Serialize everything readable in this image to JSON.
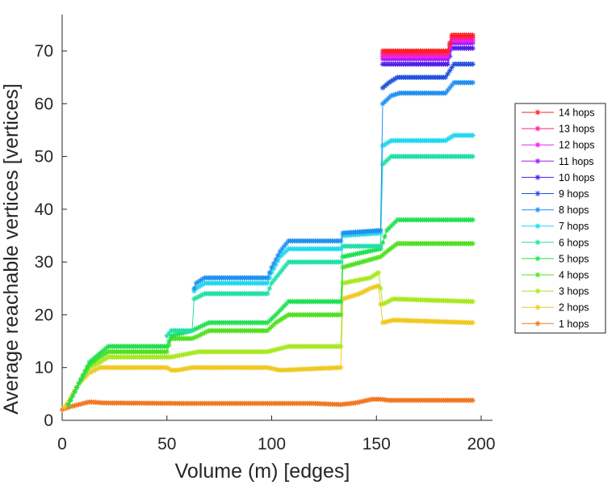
{
  "chart_data": {
    "type": "line",
    "xlabel": "Volume (m) [edges]",
    "ylabel": "Average reachable vertices [vertices]",
    "xlim": [
      0,
      200
    ],
    "ylim": [
      0,
      77
    ],
    "xticks": [
      "0",
      "50",
      "100",
      "150",
      "200"
    ],
    "yticks": [
      "0",
      "10",
      "20",
      "30",
      "40",
      "50",
      "60",
      "70"
    ],
    "grid": false,
    "legend_position": "right",
    "marker": "asterisk",
    "series": [
      {
        "name": "14 hops",
        "color": "#ff2020",
        "points": [
          [
            153,
            70
          ],
          [
            184,
            70
          ],
          [
            186,
            73
          ],
          [
            196,
            73
          ]
        ]
      },
      {
        "name": "13 hops",
        "color": "#ff1f88",
        "points": [
          [
            153,
            69.5
          ],
          [
            184,
            69.5
          ],
          [
            186,
            72.5
          ],
          [
            196,
            72.5
          ]
        ]
      },
      {
        "name": "12 hops",
        "color": "#ef1ff2",
        "points": [
          [
            153,
            69
          ],
          [
            184,
            69
          ],
          [
            186,
            72
          ],
          [
            196,
            72
          ]
        ]
      },
      {
        "name": "11 hops",
        "color": "#9f1ff2",
        "points": [
          [
            153,
            68.5
          ],
          [
            184,
            68.5
          ],
          [
            186,
            71.5
          ],
          [
            196,
            71.5
          ]
        ]
      },
      {
        "name": "10 hops",
        "color": "#4f1fe8",
        "points": [
          [
            153,
            67.5
          ],
          [
            184,
            67.5
          ],
          [
            186,
            70.5
          ],
          [
            196,
            70.5
          ]
        ]
      },
      {
        "name": "9 hops",
        "color": "#2050e0",
        "points": [
          [
            153,
            63
          ],
          [
            156,
            64
          ],
          [
            160,
            65
          ],
          [
            183,
            65
          ],
          [
            187,
            67.5
          ],
          [
            196,
            67.5
          ]
        ]
      },
      {
        "name": "8 hops",
        "color": "#2090f0",
        "points": [
          [
            63,
            25
          ],
          [
            64,
            26
          ],
          [
            68,
            27
          ],
          [
            98,
            27
          ],
          [
            100,
            29
          ],
          [
            104,
            32
          ],
          [
            108,
            34
          ],
          [
            133,
            34
          ],
          [
            134,
            35.5
          ],
          [
            152,
            36
          ],
          [
            153,
            60
          ],
          [
            157,
            61.5
          ],
          [
            161,
            62
          ],
          [
            183,
            62
          ],
          [
            187,
            64
          ],
          [
            196,
            64
          ]
        ]
      },
      {
        "name": "7 hops",
        "color": "#20d8f0",
        "points": [
          [
            63,
            24.5
          ],
          [
            64,
            25
          ],
          [
            68,
            26
          ],
          [
            98,
            26
          ],
          [
            100,
            28
          ],
          [
            104,
            31
          ],
          [
            108,
            32.5
          ],
          [
            133,
            32.5
          ],
          [
            134,
            35
          ],
          [
            152,
            35.5
          ],
          [
            153,
            52
          ],
          [
            157,
            53
          ],
          [
            161,
            53
          ],
          [
            183,
            53
          ],
          [
            187,
            54
          ],
          [
            196,
            54
          ]
        ]
      },
      {
        "name": "6 hops",
        "color": "#20e0a8",
        "points": [
          [
            50,
            16
          ],
          [
            52,
            17
          ],
          [
            62,
            17
          ],
          [
            63,
            23
          ],
          [
            68,
            24
          ],
          [
            98,
            24
          ],
          [
            100,
            26
          ],
          [
            104,
            28
          ],
          [
            108,
            30
          ],
          [
            133,
            30
          ],
          [
            134,
            33
          ],
          [
            152,
            33
          ],
          [
            153,
            48.5
          ],
          [
            157,
            50
          ],
          [
            196,
            50
          ]
        ]
      },
      {
        "name": "5 hops",
        "color": "#20e050",
        "points": [
          [
            3,
            3
          ],
          [
            8,
            7
          ],
          [
            13,
            11
          ],
          [
            16,
            12
          ],
          [
            22,
            14
          ],
          [
            50,
            14
          ],
          [
            52,
            16
          ],
          [
            62,
            17
          ],
          [
            70,
            18.5
          ],
          [
            98,
            18.5
          ],
          [
            102,
            20
          ],
          [
            108,
            22.5
          ],
          [
            133,
            22.5
          ],
          [
            134,
            31
          ],
          [
            152,
            32.5
          ],
          [
            155,
            36
          ],
          [
            160,
            38
          ],
          [
            196,
            38
          ]
        ]
      },
      {
        "name": "4 hops",
        "color": "#50e020",
        "points": [
          [
            3,
            3
          ],
          [
            8,
            7
          ],
          [
            13,
            10.5
          ],
          [
            18,
            12
          ],
          [
            22,
            13
          ],
          [
            50,
            13
          ],
          [
            52,
            15.5
          ],
          [
            62,
            15.5
          ],
          [
            65,
            16
          ],
          [
            70,
            17
          ],
          [
            98,
            17
          ],
          [
            102,
            18.5
          ],
          [
            108,
            20
          ],
          [
            133,
            20
          ],
          [
            134,
            29
          ],
          [
            152,
            31
          ],
          [
            155,
            32
          ],
          [
            160,
            33.5
          ],
          [
            196,
            33.5
          ]
        ]
      },
      {
        "name": "3 hops",
        "color": "#a8e820",
        "points": [
          [
            3,
            3
          ],
          [
            8,
            7
          ],
          [
            13,
            10
          ],
          [
            18,
            11
          ],
          [
            22,
            12
          ],
          [
            50,
            12
          ],
          [
            52,
            12
          ],
          [
            65,
            13
          ],
          [
            98,
            13
          ],
          [
            108,
            14
          ],
          [
            133,
            14
          ],
          [
            134,
            26
          ],
          [
            147,
            27
          ],
          [
            151,
            28
          ],
          [
            153,
            22
          ],
          [
            158,
            23
          ],
          [
            196,
            22.5
          ]
        ]
      },
      {
        "name": "2 hops",
        "color": "#f0c820",
        "points": [
          [
            1,
            2.5
          ],
          [
            3,
            3.5
          ],
          [
            5,
            5
          ],
          [
            8,
            7
          ],
          [
            13,
            9
          ],
          [
            18,
            10
          ],
          [
            50,
            10
          ],
          [
            52,
            9.5
          ],
          [
            55,
            9.5
          ],
          [
            62,
            10
          ],
          [
            98,
            10
          ],
          [
            104,
            9.5
          ],
          [
            133,
            10
          ],
          [
            134,
            23
          ],
          [
            142,
            24
          ],
          [
            147,
            25
          ],
          [
            151,
            25.5
          ],
          [
            153,
            18.5
          ],
          [
            158,
            19
          ],
          [
            196,
            18.5
          ]
        ]
      },
      {
        "name": "1 hops",
        "color": "#f07820",
        "points": [
          [
            0,
            2
          ],
          [
            1,
            2.2
          ],
          [
            5,
            2.7
          ],
          [
            10,
            3.2
          ],
          [
            13,
            3.5
          ],
          [
            20,
            3.3
          ],
          [
            60,
            3.2
          ],
          [
            120,
            3.2
          ],
          [
            133,
            3
          ],
          [
            140,
            3.3
          ],
          [
            148,
            4
          ],
          [
            152,
            4
          ],
          [
            156,
            3.8
          ],
          [
            196,
            3.8
          ]
        ]
      }
    ]
  }
}
